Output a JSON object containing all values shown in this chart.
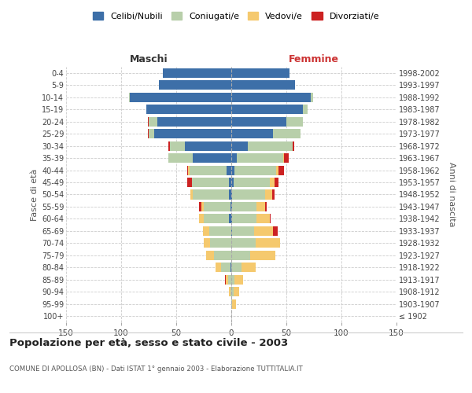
{
  "age_groups": [
    "100+",
    "95-99",
    "90-94",
    "85-89",
    "80-84",
    "75-79",
    "70-74",
    "65-69",
    "60-64",
    "55-59",
    "50-54",
    "45-49",
    "40-44",
    "35-39",
    "30-34",
    "25-29",
    "20-24",
    "15-19",
    "10-14",
    "5-9",
    "0-4"
  ],
  "birth_years": [
    "≤ 1902",
    "1903-1907",
    "1908-1912",
    "1913-1917",
    "1918-1922",
    "1923-1927",
    "1928-1932",
    "1933-1937",
    "1938-1942",
    "1943-1947",
    "1948-1952",
    "1953-1957",
    "1958-1962",
    "1963-1967",
    "1968-1972",
    "1973-1977",
    "1978-1982",
    "1983-1987",
    "1988-1992",
    "1993-1997",
    "1998-2002"
  ],
  "male_celibi": [
    0,
    0,
    0,
    0,
    1,
    0,
    0,
    0,
    2,
    1,
    2,
    2,
    4,
    35,
    42,
    70,
    67,
    77,
    92,
    66,
    62
  ],
  "male_coniugati": [
    0,
    0,
    1,
    3,
    8,
    16,
    19,
    20,
    23,
    24,
    33,
    34,
    34,
    22,
    14,
    5,
    8,
    0,
    1,
    0,
    0
  ],
  "male_vedovi": [
    0,
    0,
    1,
    2,
    5,
    7,
    6,
    6,
    4,
    2,
    2,
    0,
    1,
    0,
    0,
    0,
    0,
    0,
    0,
    0,
    0
  ],
  "male_divorziati": [
    0,
    0,
    0,
    1,
    0,
    0,
    0,
    0,
    0,
    2,
    0,
    4,
    1,
    0,
    1,
    1,
    1,
    0,
    0,
    0,
    0
  ],
  "female_nubili": [
    0,
    0,
    0,
    0,
    0,
    0,
    0,
    1,
    1,
    1,
    1,
    2,
    3,
    5,
    15,
    38,
    50,
    65,
    72,
    58,
    53
  ],
  "female_coniugate": [
    0,
    1,
    2,
    3,
    9,
    17,
    22,
    20,
    22,
    22,
    30,
    33,
    38,
    42,
    41,
    25,
    15,
    4,
    2,
    0,
    0
  ],
  "female_vedove": [
    0,
    3,
    5,
    8,
    13,
    23,
    22,
    17,
    12,
    8,
    6,
    4,
    2,
    1,
    0,
    0,
    0,
    0,
    0,
    0,
    0
  ],
  "female_divorziate": [
    0,
    0,
    0,
    0,
    0,
    0,
    0,
    4,
    1,
    1,
    2,
    4,
    5,
    4,
    1,
    0,
    0,
    0,
    0,
    0,
    0
  ],
  "color_celibi": "#3d6fa8",
  "color_coniugati": "#b8cfaa",
  "color_vedovi": "#f5c96e",
  "color_divorziati": "#cc2222",
  "xlim": 150,
  "title": "Popolazione per età, sesso e stato civile - 2003",
  "subtitle": "COMUNE DI APOLLOSA (BN) - Dati ISTAT 1° gennaio 2003 - Elaborazione TUTTITALIA.IT",
  "ylabel_left": "Fasce di età",
  "ylabel_right": "Anni di nascita",
  "label_male": "Maschi",
  "label_female": "Femmine",
  "legend_labels": [
    "Celibi/Nubili",
    "Coniugati/e",
    "Vedovi/e",
    "Divorziati/e"
  ],
  "bg_color": "#ffffff",
  "bar_height": 0.78
}
